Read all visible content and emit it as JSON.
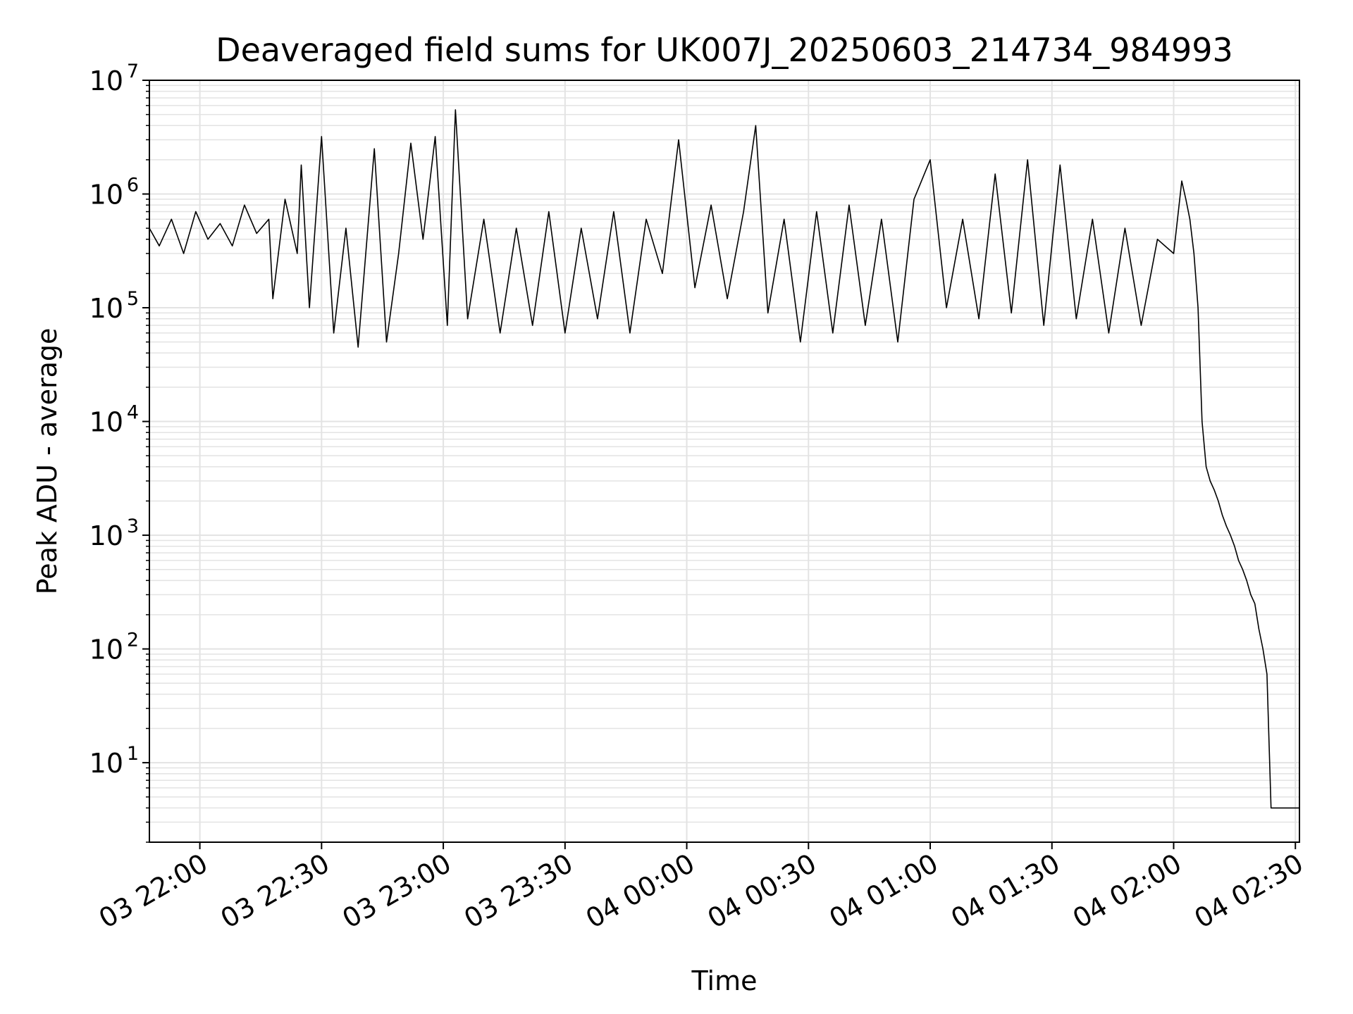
{
  "chart_data": {
    "type": "line",
    "title": "Deaveraged field sums for UK007J_20250603_214734_984993",
    "xlabel": "Time",
    "ylabel": "Peak ADU - average",
    "yscale": "log",
    "grid": true,
    "colors": {
      "line": "#000000",
      "grid": "#e3e3e3",
      "axes": "#000000",
      "background": "#ffffff"
    },
    "xlim": [
      "2025-06-03T21:47:34",
      "2025-06-04T02:31:00"
    ],
    "ylim": [
      2,
      10000000
    ],
    "x_ticks": [
      {
        "t": "2025-06-03T22:00:00",
        "label": "03 22:00"
      },
      {
        "t": "2025-06-03T22:30:00",
        "label": "03 22:30"
      },
      {
        "t": "2025-06-03T23:00:00",
        "label": "03 23:00"
      },
      {
        "t": "2025-06-03T23:30:00",
        "label": "03 23:30"
      },
      {
        "t": "2025-06-04T00:00:00",
        "label": "04 00:00"
      },
      {
        "t": "2025-06-04T00:30:00",
        "label": "04 00:30"
      },
      {
        "t": "2025-06-04T01:00:00",
        "label": "04 01:00"
      },
      {
        "t": "2025-06-04T01:30:00",
        "label": "04 01:30"
      },
      {
        "t": "2025-06-04T02:00:00",
        "label": "04 02:00"
      },
      {
        "t": "2025-06-04T02:30:00",
        "label": "04 02:30"
      }
    ],
    "y_ticks": [
      {
        "value": 10,
        "base": "10",
        "exp": "1"
      },
      {
        "value": 100,
        "base": "10",
        "exp": "2"
      },
      {
        "value": 1000,
        "base": "10",
        "exp": "3"
      },
      {
        "value": 10000,
        "base": "10",
        "exp": "4"
      },
      {
        "value": 100000,
        "base": "10",
        "exp": "5"
      },
      {
        "value": 1000000,
        "base": "10",
        "exp": "6"
      },
      {
        "value": 10000000,
        "base": "10",
        "exp": "7"
      }
    ],
    "series": [
      {
        "x": [
          "2025-06-03T21:47:34",
          "2025-06-03T21:50:00",
          "2025-06-03T21:53:00",
          "2025-06-03T21:56:00",
          "2025-06-03T21:59:00",
          "2025-06-03T22:02:00",
          "2025-06-03T22:05:00",
          "2025-06-03T22:08:00",
          "2025-06-03T22:11:00",
          "2025-06-03T22:14:00",
          "2025-06-03T22:17:00",
          "2025-06-03T22:18:00",
          "2025-06-03T22:21:00",
          "2025-06-03T22:24:00",
          "2025-06-03T22:25:00",
          "2025-06-03T22:27:00",
          "2025-06-03T22:30:00",
          "2025-06-03T22:33:00",
          "2025-06-03T22:36:00",
          "2025-06-03T22:39:00",
          "2025-06-03T22:43:00",
          "2025-06-03T22:46:00",
          "2025-06-03T22:49:00",
          "2025-06-03T22:52:00",
          "2025-06-03T22:55:00",
          "2025-06-03T22:58:00",
          "2025-06-03T23:01:00",
          "2025-06-03T23:03:00",
          "2025-06-03T23:06:00",
          "2025-06-03T23:10:00",
          "2025-06-03T23:14:00",
          "2025-06-03T23:18:00",
          "2025-06-03T23:22:00",
          "2025-06-03T23:26:00",
          "2025-06-03T23:30:00",
          "2025-06-03T23:34:00",
          "2025-06-03T23:38:00",
          "2025-06-03T23:42:00",
          "2025-06-03T23:46:00",
          "2025-06-03T23:50:00",
          "2025-06-03T23:54:00",
          "2025-06-03T23:58:00",
          "2025-06-04T00:02:00",
          "2025-06-04T00:06:00",
          "2025-06-04T00:10:00",
          "2025-06-04T00:14:00",
          "2025-06-04T00:17:00",
          "2025-06-04T00:20:00",
          "2025-06-04T00:24:00",
          "2025-06-04T00:28:00",
          "2025-06-04T00:32:00",
          "2025-06-04T00:36:00",
          "2025-06-04T00:40:00",
          "2025-06-04T00:44:00",
          "2025-06-04T00:48:00",
          "2025-06-04T00:52:00",
          "2025-06-04T00:56:00",
          "2025-06-04T01:00:00",
          "2025-06-04T01:04:00",
          "2025-06-04T01:08:00",
          "2025-06-04T01:12:00",
          "2025-06-04T01:16:00",
          "2025-06-04T01:20:00",
          "2025-06-04T01:24:00",
          "2025-06-04T01:28:00",
          "2025-06-04T01:32:00",
          "2025-06-04T01:36:00",
          "2025-06-04T01:40:00",
          "2025-06-04T01:44:00",
          "2025-06-04T01:48:00",
          "2025-06-04T01:52:00",
          "2025-06-04T01:56:00",
          "2025-06-04T02:00:00",
          "2025-06-04T02:02:00",
          "2025-06-04T02:03:00",
          "2025-06-04T02:04:00",
          "2025-06-04T02:05:00",
          "2025-06-04T02:06:00",
          "2025-06-04T02:07:00",
          "2025-06-04T02:08:00",
          "2025-06-04T02:09:00",
          "2025-06-04T02:10:00",
          "2025-06-04T02:11:00",
          "2025-06-04T02:12:00",
          "2025-06-04T02:13:00",
          "2025-06-04T02:14:00",
          "2025-06-04T02:15:00",
          "2025-06-04T02:16:00",
          "2025-06-04T02:17:00",
          "2025-06-04T02:18:00",
          "2025-06-04T02:19:00",
          "2025-06-04T02:20:00",
          "2025-06-04T02:21:00",
          "2025-06-04T02:22:00",
          "2025-06-04T02:23:00",
          "2025-06-04T02:24:00",
          "2025-06-04T02:25:00",
          "2025-06-04T02:26:00",
          "2025-06-04T02:27:00",
          "2025-06-04T02:28:00",
          "2025-06-04T02:29:00",
          "2025-06-04T02:30:00",
          "2025-06-04T02:31:00"
        ],
        "y": [
          500000,
          350000,
          600000,
          300000,
          700000,
          400000,
          550000,
          350000,
          800000,
          450000,
          600000,
          120000,
          900000,
          300000,
          1800000,
          100000,
          3200000,
          60000,
          500000,
          45000,
          2500000,
          50000,
          300000,
          2800000,
          400000,
          3200000,
          70000,
          5500000,
          80000,
          600000,
          60000,
          500000,
          70000,
          700000,
          60000,
          500000,
          80000,
          700000,
          60000,
          600000,
          200000,
          3000000,
          150000,
          800000,
          120000,
          700000,
          4000000,
          90000,
          600000,
          50000,
          700000,
          60000,
          800000,
          70000,
          600000,
          50000,
          900000,
          2000000,
          100000,
          600000,
          80000,
          1500000,
          90000,
          2000000,
          70000,
          1800000,
          80000,
          600000,
          60000,
          500000,
          70000,
          400000,
          300000,
          1300000,
          900000,
          600000,
          300000,
          100000,
          10000,
          4000,
          3000,
          2500,
          2000,
          1500,
          1200,
          1000,
          800,
          600,
          500,
          400,
          300,
          250,
          150,
          100,
          60,
          4,
          4,
          4,
          4,
          4,
          4,
          4,
          4
        ]
      }
    ]
  }
}
